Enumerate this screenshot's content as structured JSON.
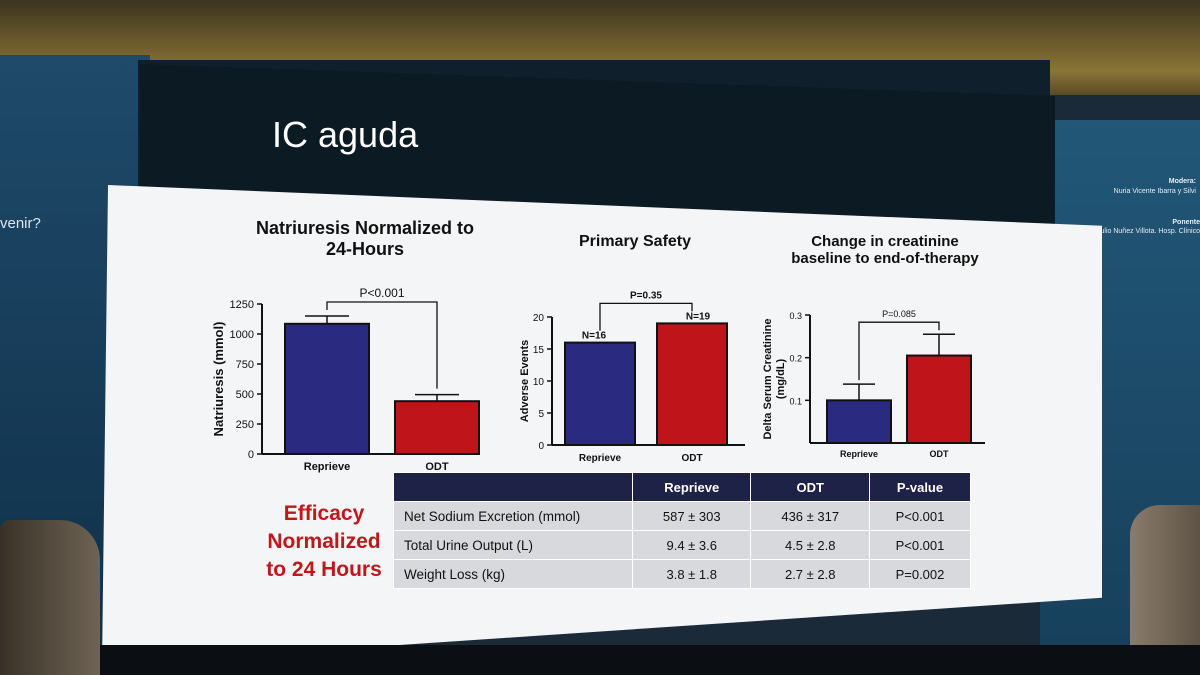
{
  "background": {
    "left_text": "venir?",
    "right_panel": {
      "moderator_label": "Modera:",
      "moderator_names": "Nuria Vicente Ibarra y Silvi",
      "speaker_label": "Ponente",
      "speaker_names": "Julio Nuñez Villota. Hosp. Clínico"
    }
  },
  "slide": {
    "title": "IC aguda",
    "efficacy_label": [
      "Efficacy",
      "Normalized",
      "to 24 Hours"
    ],
    "table": {
      "headers": [
        "",
        "Reprieve",
        "ODT",
        "P-value"
      ],
      "rows": [
        [
          "Net Sodium Excretion (mmol)",
          "587 ± 303",
          "436 ± 317",
          "P<0.001"
        ],
        [
          "Total Urine Output (L)",
          "9.4 ± 3.6",
          "4.5 ± 2.8",
          "P<0.001"
        ],
        [
          "Weight Loss (kg)",
          "3.8 ± 1.8",
          "2.7 ± 2.8",
          "P=0.002"
        ]
      ]
    }
  },
  "colors": {
    "reprieve": "#2a2a80",
    "odt": "#c0141b",
    "table_header": "#1e2246",
    "efficacy": "#c0171a"
  },
  "chart_data": [
    {
      "type": "bar",
      "title": "Natriuresis Normalized to 24-Hours",
      "title_lines": [
        "Natriuresis Normalized to",
        "24-Hours"
      ],
      "categories": [
        "Reprieve",
        "ODT"
      ],
      "values": [
        1085,
        440
      ],
      "errors": [
        65,
        55
      ],
      "ylabel": "Natriuresis (mmol)",
      "xlabel": "",
      "ylim": [
        0,
        1250
      ],
      "yticks": [
        "0",
        "250",
        "500",
        "750",
        "1000",
        "1250"
      ],
      "annotation": "P<0.001"
    },
    {
      "type": "bar",
      "title": "Primary Safety",
      "title_lines": [
        "Primary Safety"
      ],
      "categories": [
        "Reprieve",
        "ODT"
      ],
      "values": [
        16,
        19
      ],
      "bar_labels": [
        "N=16",
        "N=19"
      ],
      "ylabel": "Adverse Events",
      "xlabel": "",
      "ylim": [
        0,
        20
      ],
      "yticks": [
        "0",
        "5",
        "10",
        "15",
        "20"
      ],
      "annotation": "P=0.35"
    },
    {
      "type": "bar",
      "title": "Change in creatinine baseline to end-of-therapy",
      "title_lines": [
        "Change in creatinine",
        "baseline to end-of-therapy"
      ],
      "categories": [
        "Reprieve",
        "ODT"
      ],
      "values": [
        0.1,
        0.205
      ],
      "errors": [
        0.038,
        0.05
      ],
      "ylabel": "Delta Serum Creatinine (mg/dL)",
      "ylabel_lines": [
        "Delta Serum Creatinine",
        "(mg/dL)"
      ],
      "xlabel": "",
      "ylim": [
        0,
        0.3
      ],
      "yticks": [
        "0.1",
        "0.2",
        "0.3"
      ],
      "annotation": "P=0.085"
    }
  ]
}
